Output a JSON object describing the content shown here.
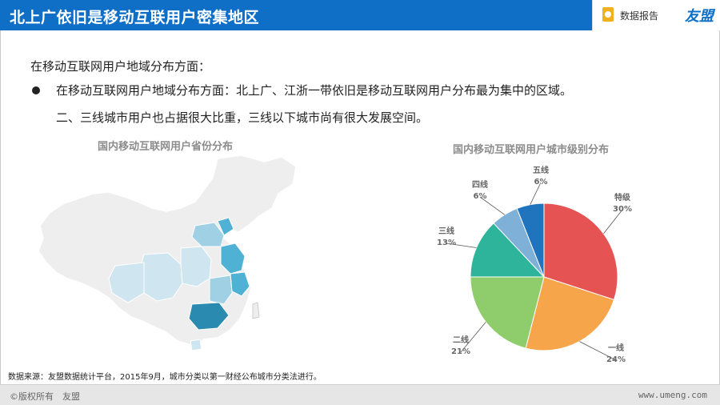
{
  "header": {
    "title": "北上广依旧是移动互联用户密集地区",
    "report_label": "数据报告",
    "logo_text": "友盟",
    "bg_color": "#0f6fc6"
  },
  "content": {
    "subtitle": "在移动互联网用户地域分布方面：",
    "bullet_line1": "在移动互联网用户地域分布方面：北上广、江浙一带依旧是移动互联网用户分布最为集中的区域。",
    "bullet_line2": "二、三线城市用户也占据很大比重，三线以下城市尚有很大发展空间。"
  },
  "map": {
    "title": "国内移动互联网用户省份分布",
    "colors": {
      "base": "#eeeeee",
      "light": "#cfe6f0",
      "mid": "#9fd0e4",
      "strong": "#4fb1d4",
      "top": "#2a8ab0"
    }
  },
  "chart_data": {
    "type": "pie",
    "title": "国内移动互联网用户城市级别分布",
    "slices": [
      {
        "label": "特级",
        "value": 30,
        "pct_text": "30%",
        "color": "#e55353"
      },
      {
        "label": "一线",
        "value": 24,
        "pct_text": "24%",
        "color": "#f6a54b"
      },
      {
        "label": "二线",
        "value": 21,
        "pct_text": "21%",
        "color": "#8fcc6b"
      },
      {
        "label": "三线",
        "value": 13,
        "pct_text": "13%",
        "color": "#2fb49c"
      },
      {
        "label": "四线",
        "value": 6,
        "pct_text": "6%",
        "color": "#7fb1d8"
      },
      {
        "label": "五线",
        "value": 6,
        "pct_text": "6%",
        "color": "#1f74bd"
      }
    ]
  },
  "source": "数据来源：友盟数据统计平台，2015年9月，城市分类以第一财经公布城市分类法进行。",
  "footer": {
    "copyright": "©版权所有　友盟",
    "url": "www.umeng.com"
  }
}
